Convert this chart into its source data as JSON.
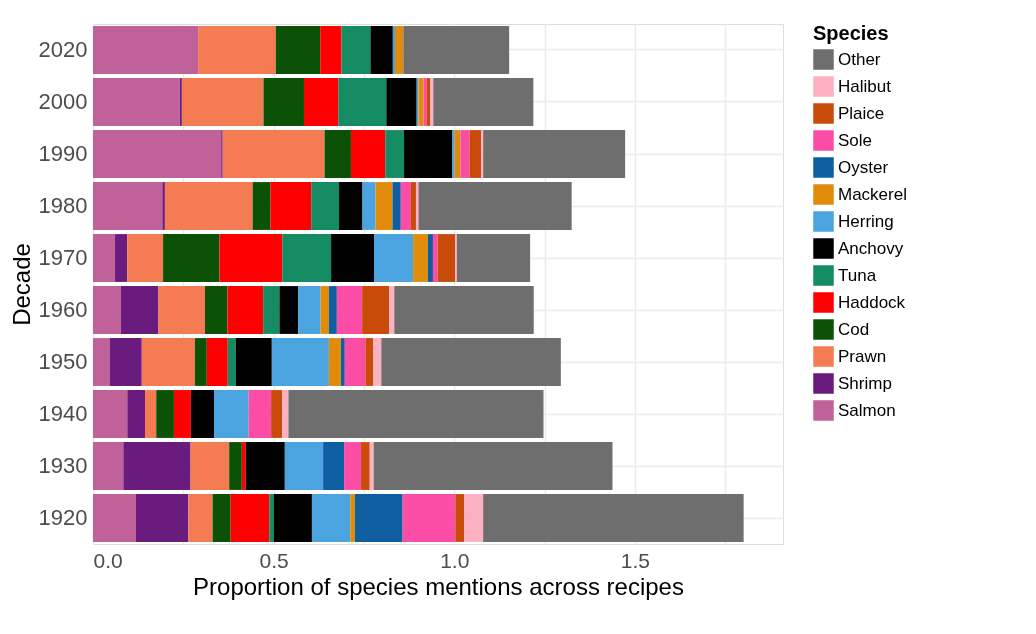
{
  "chart_data": {
    "type": "bar",
    "orientation": "horizontal",
    "stacked": true,
    "xlabel": "Proportion of species mentions across recipes",
    "ylabel": "Decade",
    "legend_title": "Species",
    "categories": [
      "2020",
      "2000",
      "1990",
      "1980",
      "1970",
      "1960",
      "1950",
      "1940",
      "1930",
      "1920"
    ],
    "series": [
      {
        "name": "Salmon",
        "color": "#c0619a",
        "values": [
          0.291,
          0.24,
          0.355,
          0.192,
          0.061,
          0.077,
          0.046,
          0.095,
          0.084,
          0.119
        ]
      },
      {
        "name": "Shrimp",
        "color": "#6a1b7e",
        "values": [
          0,
          0.006,
          0.004,
          0.007,
          0.034,
          0.104,
          0.089,
          0.049,
          0.186,
          0.145
        ]
      },
      {
        "name": "Prawn",
        "color": "#f47b52",
        "values": [
          0.215,
          0.226,
          0.282,
          0.243,
          0.099,
          0.129,
          0.147,
          0.031,
          0.107,
          0.067
        ]
      },
      {
        "name": "Cod",
        "color": "#0b5207",
        "values": [
          0.123,
          0.112,
          0.073,
          0.049,
          0.156,
          0.062,
          0.033,
          0.049,
          0.035,
          0.05
        ]
      },
      {
        "name": "Haddock",
        "color": "#ff0000",
        "values": [
          0.059,
          0.095,
          0.095,
          0.113,
          0.174,
          0.099,
          0.058,
          0.047,
          0.011,
          0.107
        ]
      },
      {
        "name": "Tuna",
        "color": "#148b62",
        "values": [
          0.08,
          0.133,
          0.052,
          0.077,
          0.135,
          0.045,
          0.022,
          0,
          0,
          0.013
        ]
      },
      {
        "name": "Anchovy",
        "color": "#000000",
        "values": [
          0.062,
          0.084,
          0.134,
          0.065,
          0.119,
          0.052,
          0.1,
          0.064,
          0.108,
          0.105
        ]
      },
      {
        "name": "Herring",
        "color": "#4ba4e0",
        "values": [
          0.006,
          0.005,
          0.006,
          0.036,
          0.108,
          0.062,
          0.158,
          0.096,
          0.106,
          0.106
        ]
      },
      {
        "name": "Mackerel",
        "color": "#e08c0a",
        "values": [
          0.023,
          0.014,
          0.016,
          0.047,
          0.041,
          0.023,
          0.033,
          0,
          0,
          0.013
        ]
      },
      {
        "name": "Oyster",
        "color": "#0e5ea1",
        "values": [
          0,
          0,
          0,
          0.023,
          0.014,
          0.022,
          0.011,
          0,
          0.058,
          0.132
        ]
      },
      {
        "name": "Sole",
        "color": "#fc4da6",
        "values": [
          0,
          0.009,
          0.025,
          0.028,
          0.013,
          0.07,
          0.057,
          0.062,
          0.047,
          0.146
        ]
      },
      {
        "name": "Plaice",
        "color": "#c94b0a",
        "values": [
          0,
          0.01,
          0.032,
          0.014,
          0.048,
          0.075,
          0.022,
          0.031,
          0.024,
          0.025
        ]
      },
      {
        "name": "Halibut",
        "color": "#fdb0c2",
        "values": [
          0,
          0.008,
          0.006,
          0.007,
          0.005,
          0.014,
          0.022,
          0.017,
          0.011,
          0.052
        ]
      },
      {
        "name": "Other",
        "color": "#6e6e6e",
        "values": [
          0.293,
          0.277,
          0.393,
          0.424,
          0.203,
          0.386,
          0.497,
          0.706,
          0.661,
          0.721
        ]
      }
    ],
    "xlim": [
      0,
      1.91
    ],
    "xticks": [
      {
        "value": 0,
        "label": "0.0"
      },
      {
        "value": 0.25,
        "label": null
      },
      {
        "value": 0.5,
        "label": "0.5"
      },
      {
        "value": 0.75,
        "label": null
      },
      {
        "value": 1,
        "label": "1.0"
      },
      {
        "value": 1.25,
        "label": null
      },
      {
        "value": 1.5,
        "label": "1.5"
      },
      {
        "value": 1.75,
        "label": null
      }
    ],
    "grid": true,
    "legend": "right"
  }
}
